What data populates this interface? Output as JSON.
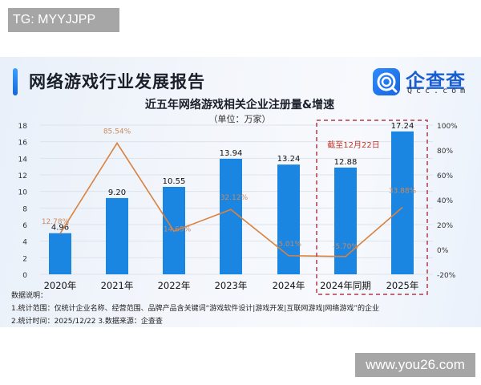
{
  "watermark_top": "TG: MYYJJPP",
  "watermark_bottom": "www.you26.com",
  "report": {
    "title": "网络游戏行业发展报告",
    "logo_name": "企查查",
    "logo_sub": "Qcc.com"
  },
  "colors": {
    "bar": "#1a86e2",
    "line": "#d9823f",
    "growth_label": "#c98a5e",
    "highlight_box": "#b03a4a",
    "highlight_text": "#c0392b"
  },
  "chart_data": {
    "type": "bar+line",
    "title": "近五年网络游戏相关企业注册量&增速",
    "subtitle": "（单位：万家）",
    "categories": [
      "2020年",
      "2021年",
      "2022年",
      "2023年",
      "2024年",
      "2024年同期",
      "2025年"
    ],
    "series": [
      {
        "name": "注册量（万家）",
        "type": "bar",
        "axis": "left",
        "values": [
          4.96,
          9.2,
          10.55,
          13.94,
          13.24,
          12.88,
          17.24
        ],
        "labels": [
          "4.96",
          "9.20",
          "10.55",
          "13.94",
          "13.24",
          "12.88",
          "17.24"
        ]
      },
      {
        "name": "增速",
        "type": "line",
        "axis": "right",
        "values": [
          12.78,
          85.54,
          14.65,
          32.12,
          -5.01,
          -5.7,
          33.88
        ],
        "labels": [
          "12.78%",
          "85.54%",
          "14.65%",
          "32.12%",
          "-5.01%",
          "-5.70%",
          "33.88%"
        ]
      }
    ],
    "left_axis": {
      "ticks": [
        "0",
        "2",
        "4",
        "6",
        "8",
        "10",
        "12",
        "14",
        "16",
        "18"
      ],
      "ylim": [
        0,
        18
      ]
    },
    "right_axis": {
      "ticks": [
        "-20%",
        "0%",
        "20%",
        "40%",
        "60%",
        "80%",
        "100%"
      ],
      "ylim": [
        -20,
        100
      ]
    },
    "annotation": "截至12月22日",
    "highlight_categories": [
      "2024年同期",
      "2025年"
    ],
    "grid": true
  },
  "notes": {
    "heading": "数据说明：",
    "line1": "1.统计范围：仅统计企业名称、经营范围、品牌产品含关键词“游戏软件设计|游戏开发|互联网游戏|网络游戏”的企业",
    "line2": "2.统计时间：2025/12/22  3.数据来源：企查查"
  }
}
